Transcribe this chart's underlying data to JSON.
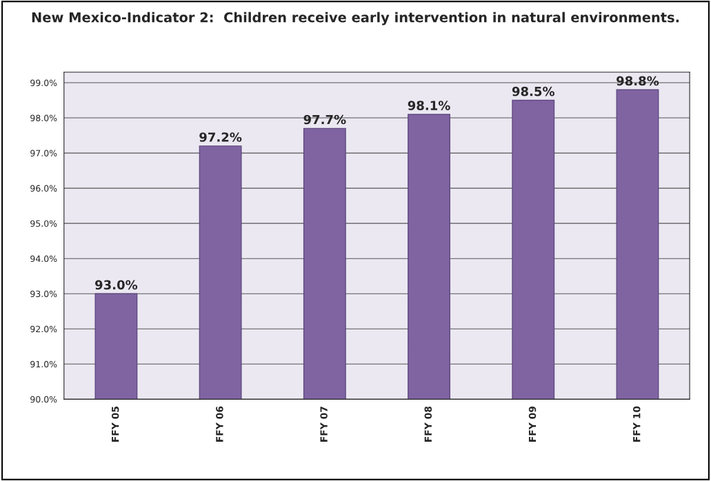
{
  "chart_data": {
    "type": "bar",
    "title": "New Mexico-Indicator 2:  Children receive early intervention in natural environments.",
    "categories": [
      "FFY 05",
      "FFY 06",
      "FFY 07",
      "FFY 08",
      "FFY 09",
      "FFY 10"
    ],
    "values": [
      93.0,
      97.2,
      97.7,
      98.1,
      98.5,
      98.8
    ],
    "value_labels": [
      "93.0%",
      "97.2%",
      "97.7%",
      "98.1%",
      "98.5%",
      "98.8%"
    ],
    "color": "#8064a2",
    "ylim": [
      90,
      99.3
    ],
    "yticks": [
      {
        "value": 90,
        "label": "90.0%"
      },
      {
        "value": 91,
        "label": "91.0%"
      },
      {
        "value": 92,
        "label": "92.0%"
      },
      {
        "value": 93,
        "label": "93.0%"
      },
      {
        "value": 94,
        "label": "94.0%"
      },
      {
        "value": 95,
        "label": "95.0%"
      },
      {
        "value": 96,
        "label": "96.0%"
      },
      {
        "value": 97,
        "label": "97.0%"
      },
      {
        "value": 98,
        "label": "98.0%"
      },
      {
        "value": 99,
        "label": "99.0%"
      }
    ],
    "grid": "y"
  }
}
